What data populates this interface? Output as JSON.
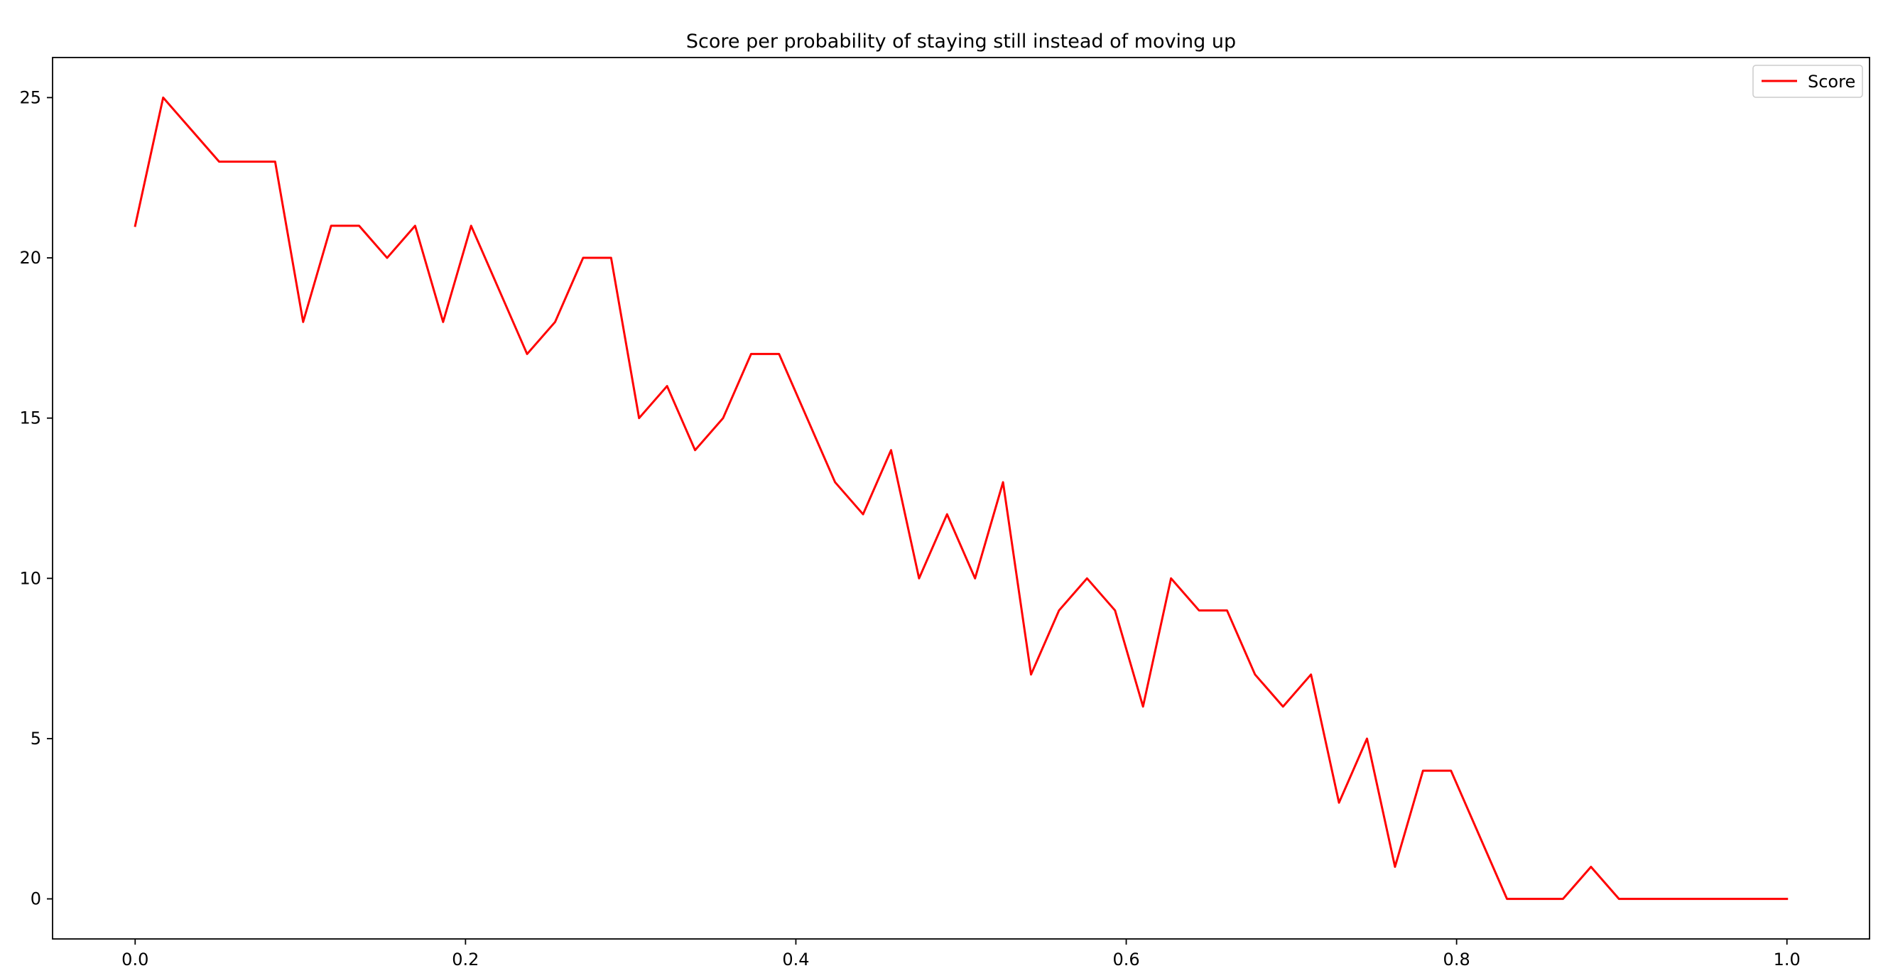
{
  "chart_data": {
    "type": "line",
    "title": "Score per probability of staying still instead of moving up",
    "xlabel": "",
    "ylabel": "",
    "xlim": [
      -0.05,
      1.05
    ],
    "ylim": [
      -1.25,
      26.25
    ],
    "xticks": [
      0.0,
      0.2,
      0.4,
      0.6,
      0.8,
      1.0
    ],
    "xtick_labels": [
      "0.0",
      "0.2",
      "0.4",
      "0.6",
      "0.8",
      "1.0"
    ],
    "yticks": [
      0,
      5,
      10,
      15,
      20,
      25
    ],
    "ytick_labels": [
      "0",
      "5",
      "10",
      "15",
      "20",
      "25"
    ],
    "grid": false,
    "legend_position": "top-right",
    "series": [
      {
        "name": "Score",
        "color": "#ff0000",
        "x": [
          0.0,
          0.01695,
          0.0339,
          0.05085,
          0.0678,
          0.08475,
          0.1017,
          0.11864,
          0.13559,
          0.15254,
          0.16949,
          0.18644,
          0.20339,
          0.22034,
          0.23729,
          0.25424,
          0.27119,
          0.28814,
          0.30508,
          0.32203,
          0.33898,
          0.35593,
          0.37288,
          0.38983,
          0.40678,
          0.42373,
          0.44068,
          0.45763,
          0.47458,
          0.49153,
          0.50847,
          0.52542,
          0.54237,
          0.55932,
          0.57627,
          0.59322,
          0.61017,
          0.62712,
          0.64407,
          0.66102,
          0.67797,
          0.69492,
          0.71186,
          0.72881,
          0.74576,
          0.76271,
          0.77966,
          0.79661,
          0.81356,
          0.83051,
          0.84746,
          0.86441,
          0.88136,
          0.89831,
          0.91525,
          0.9322,
          0.94915,
          0.9661,
          0.98305,
          1.0
        ],
        "y": [
          21,
          25,
          24,
          23,
          23,
          23,
          18,
          21,
          21,
          20,
          21,
          18,
          21,
          19,
          17,
          18,
          20,
          20,
          15,
          16,
          14,
          15,
          17,
          17,
          15,
          13,
          12,
          14,
          10,
          12,
          10,
          13,
          7,
          9,
          10,
          9,
          6,
          10,
          9,
          9,
          7,
          6,
          7,
          3,
          5,
          1,
          4,
          4,
          2,
          0,
          0,
          0,
          1,
          0,
          0,
          0,
          0,
          0,
          0,
          0
        ]
      }
    ]
  }
}
